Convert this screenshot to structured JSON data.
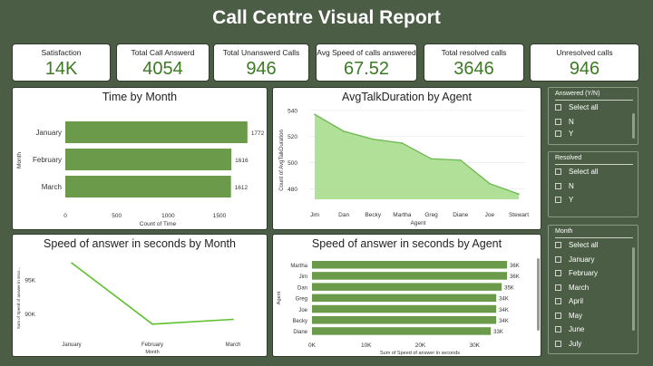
{
  "title": "Call Centre Visual Report",
  "colors": {
    "background": "#4b5e45",
    "bar": "#6a9a4a",
    "area": "#a8dd8e",
    "value": "#3d7a24"
  },
  "kpis": [
    {
      "label": "Satisfaction",
      "value": "14K"
    },
    {
      "label": "Total Call Answerd",
      "value": "4054"
    },
    {
      "label": "Total Unanswerd Calls",
      "value": "946"
    },
    {
      "label": "Avg Speed of calls answered",
      "value": "67.52"
    },
    {
      "label": "Total resolved calls",
      "value": "3646"
    },
    {
      "label": "Unresolved calls",
      "value": "946"
    }
  ],
  "chart_data": [
    {
      "type": "bar",
      "orientation": "horizontal",
      "title": "Time by Month",
      "xlabel": "Count of Time",
      "ylabel": "Month",
      "categories": [
        "January",
        "February",
        "March"
      ],
      "values": [
        1772,
        1616,
        1612
      ],
      "value_labels": [
        "1772",
        "1616",
        "1612"
      ],
      "xticks": [
        "0",
        "500",
        "1000",
        "1500"
      ],
      "xlim": [
        0,
        1800
      ]
    },
    {
      "type": "area",
      "title": "AvgTalkDuration by Agent",
      "xlabel": "Agent",
      "ylabel": "Count of AvgTalkDuration",
      "categories": [
        "Jim",
        "Dan",
        "Becky",
        "Martha",
        "Greg",
        "Diane",
        "Joe",
        "Stewart"
      ],
      "values": [
        537,
        524,
        518,
        515,
        503,
        502,
        484,
        476
      ],
      "yticks": [
        "480",
        "500",
        "520",
        "540"
      ],
      "ylim": [
        472,
        542
      ]
    },
    {
      "type": "line",
      "title": "Speed of answer in seconds by Month",
      "xlabel": "Month",
      "ylabel": "Sum of Speed of answer in seco...",
      "categories": [
        "January",
        "February",
        "March"
      ],
      "values": [
        97500,
        88500,
        89200
      ],
      "yticks": [
        "90K",
        "95K"
      ],
      "ylim": [
        87000,
        99000
      ]
    },
    {
      "type": "bar",
      "orientation": "horizontal",
      "title": "Speed of answer in seconds by Agent",
      "xlabel": "Sum of Speed of answer in seconds",
      "ylabel": "Agent",
      "categories": [
        "Martha",
        "Jim",
        "Dan",
        "Greg",
        "Joe",
        "Becky",
        "Diane"
      ],
      "values": [
        36000,
        36000,
        35000,
        34000,
        34000,
        34000,
        33000
      ],
      "value_labels": [
        "36K",
        "36K",
        "35K",
        "34K",
        "34K",
        "34K",
        "33K"
      ],
      "xticks": [
        "0K",
        "10K",
        "20K",
        "30K"
      ],
      "xlim": [
        0,
        40000
      ]
    }
  ],
  "slicers": [
    {
      "title": "Answered (Y/N)",
      "items": [
        "Select all",
        "N",
        "Y"
      ]
    },
    {
      "title": "Resolved",
      "items": [
        "Select all",
        "N",
        "Y"
      ]
    },
    {
      "title": "Month",
      "items": [
        "Select all",
        "January",
        "February",
        "March",
        "April",
        "May",
        "June",
        "July"
      ]
    }
  ]
}
